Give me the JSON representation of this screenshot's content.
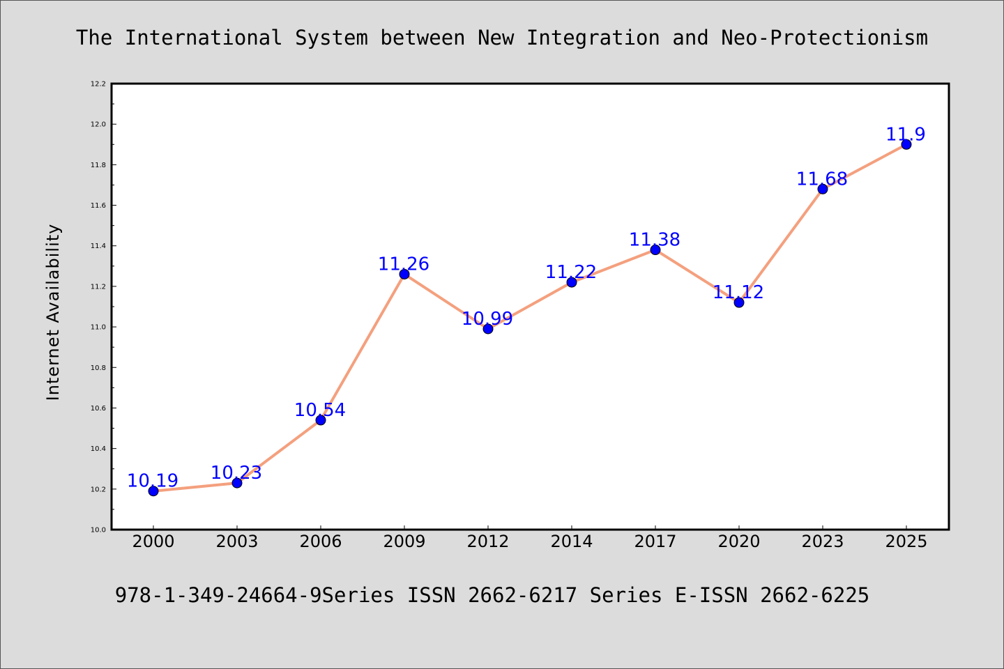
{
  "title": "The International System between New Integration and Neo-Protectionism",
  "footer": "978-1-349-24664-9Series ISSN 2662-6217 Series E-ISSN 2662-6225",
  "colors": {
    "background": "#dcdcdc",
    "plot_background": "#ffffff",
    "line": "#f4a07e",
    "marker": "#0000ff",
    "label": "#0000ff"
  },
  "chart_data": {
    "type": "line",
    "title": "The International System between New Integration and Neo-Protectionism",
    "xlabel": "",
    "ylabel": "Internet Availability",
    "categories": [
      "2000",
      "2003",
      "2006",
      "2009",
      "2012",
      "2014",
      "2017",
      "2020",
      "2023",
      "2025"
    ],
    "series": [
      {
        "values": [
          10.19,
          10.23,
          10.54,
          11.26,
          10.99,
          11.22,
          11.38,
          11.12,
          11.68,
          11.9
        ],
        "labels": [
          "10.19",
          "10.23",
          "10.54",
          "11.26",
          "10.99",
          "11.22",
          "11.38",
          "11.12",
          "11.68",
          "11.9"
        ]
      }
    ],
    "ylim": [
      10.0,
      12.2
    ],
    "yticks": [
      "10.0",
      "10.2",
      "10.4",
      "10.6",
      "10.8",
      "11.0",
      "11.2",
      "11.4",
      "11.6",
      "11.8",
      "12.0",
      "12.2"
    ],
    "grid": false,
    "legend": "none"
  }
}
